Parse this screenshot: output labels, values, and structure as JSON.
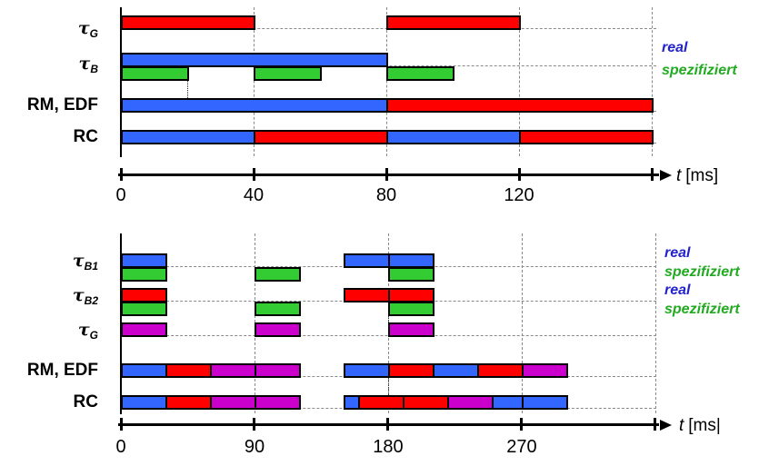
{
  "colors": {
    "blue": "#3366FF",
    "red": "#FF0000",
    "green": "#33CC33",
    "magenta": "#CC00CC",
    "legend_blue": "#2222CC",
    "legend_green": "#22AA22"
  },
  "chart_data": [
    {
      "type": "gantt",
      "name": "top-schedule",
      "time_unit": "ms",
      "axis_label_t": "t",
      "axis_label_unit": "[ms]",
      "t_max": 160,
      "ticks": [
        {
          "t": 0,
          "label": "0"
        },
        {
          "t": 40,
          "label": "40"
        },
        {
          "t": 80,
          "label": "80"
        },
        {
          "t": 120,
          "label": "120"
        },
        {
          "t": 160,
          "label": ""
        }
      ],
      "legend": [
        {
          "text": "real",
          "color": "legend_blue"
        },
        {
          "text": "spezifiziert",
          "color": "legend_green"
        }
      ],
      "rows": [
        {
          "id": "tauG",
          "label_type": "tau",
          "sub": "G",
          "bars": [
            {
              "start": 0,
              "end": 40,
              "color": "red"
            },
            {
              "start": 80,
              "end": 120,
              "color": "red"
            }
          ],
          "spec": []
        },
        {
          "id": "tauB",
          "label_type": "tau",
          "sub": "B",
          "bars": [
            {
              "start": 0,
              "end": 80,
              "color": "blue"
            }
          ],
          "spec": [
            {
              "start": 0,
              "end": 20
            },
            {
              "start": 40,
              "end": 60
            },
            {
              "start": 80,
              "end": 100
            }
          ]
        },
        {
          "id": "rmedf",
          "label_type": "text",
          "text": "RM, EDF",
          "bars": [
            {
              "start": 0,
              "end": 80,
              "color": "blue"
            },
            {
              "start": 80,
              "end": 160,
              "color": "red"
            }
          ],
          "spec": []
        },
        {
          "id": "rc",
          "label_type": "text",
          "text": "RC",
          "bars": [
            {
              "start": 0,
              "end": 40,
              "color": "blue"
            },
            {
              "start": 40,
              "end": 80,
              "color": "red"
            },
            {
              "start": 80,
              "end": 120,
              "color": "blue"
            },
            {
              "start": 120,
              "end": 160,
              "color": "red"
            }
          ],
          "spec": []
        }
      ],
      "connectors": [
        {
          "t": 20,
          "from_row": "tauB",
          "to_row": "rmedf"
        }
      ]
    },
    {
      "type": "gantt",
      "name": "bottom-schedule",
      "time_unit": "ms",
      "axis_label_t": "t",
      "axis_label_unit": "[ms|",
      "t_max": 360,
      "ticks": [
        {
          "t": 0,
          "label": "0"
        },
        {
          "t": 90,
          "label": "90"
        },
        {
          "t": 180,
          "label": "180"
        },
        {
          "t": 270,
          "label": "270"
        },
        {
          "t": 360,
          "label": ""
        }
      ],
      "legend": [
        {
          "text": "real",
          "color": "legend_blue"
        },
        {
          "text": "spezifiziert",
          "color": "legend_green"
        },
        {
          "text": "real",
          "color": "legend_blue"
        },
        {
          "text": "spezifiziert",
          "color": "legend_green"
        }
      ],
      "rows": [
        {
          "id": "tauB1",
          "label_type": "tau",
          "sub": "B1",
          "bars": [
            {
              "start": 0,
              "end": 30,
              "color": "blue"
            },
            {
              "start": 150,
              "end": 180,
              "color": "blue"
            },
            {
              "start": 180,
              "end": 210,
              "color": "blue"
            }
          ],
          "spec": [
            {
              "start": 0,
              "end": 30
            },
            {
              "start": 90,
              "end": 120
            },
            {
              "start": 180,
              "end": 210
            }
          ]
        },
        {
          "id": "tauB2",
          "label_type": "tau",
          "sub": "B2",
          "bars": [
            {
              "start": 0,
              "end": 30,
              "color": "red"
            },
            {
              "start": 150,
              "end": 180,
              "color": "red"
            },
            {
              "start": 180,
              "end": 210,
              "color": "red"
            }
          ],
          "spec": [
            {
              "start": 0,
              "end": 30
            },
            {
              "start": 90,
              "end": 120
            },
            {
              "start": 180,
              "end": 210
            }
          ]
        },
        {
          "id": "tauG",
          "label_type": "tau",
          "sub": "G",
          "bars": [
            {
              "start": 0,
              "end": 30,
              "color": "magenta"
            },
            {
              "start": 90,
              "end": 120,
              "color": "magenta"
            },
            {
              "start": 180,
              "end": 210,
              "color": "magenta"
            }
          ],
          "spec": []
        },
        {
          "id": "rmedf",
          "label_type": "text",
          "text": "RM, EDF",
          "bars": [
            {
              "start": 0,
              "end": 30,
              "color": "blue"
            },
            {
              "start": 30,
              "end": 60,
              "color": "red"
            },
            {
              "start": 60,
              "end": 90,
              "color": "magenta"
            },
            {
              "start": 90,
              "end": 120,
              "color": "magenta"
            },
            {
              "start": 150,
              "end": 180,
              "color": "blue"
            },
            {
              "start": 180,
              "end": 210,
              "color": "red"
            },
            {
              "start": 210,
              "end": 240,
              "color": "blue"
            },
            {
              "start": 240,
              "end": 270,
              "color": "red"
            },
            {
              "start": 270,
              "end": 300,
              "color": "magenta"
            }
          ],
          "spec": []
        },
        {
          "id": "rc",
          "label_type": "text",
          "text": "RC",
          "bars": [
            {
              "start": 0,
              "end": 30,
              "color": "blue"
            },
            {
              "start": 30,
              "end": 60,
              "color": "red"
            },
            {
              "start": 60,
              "end": 90,
              "color": "magenta"
            },
            {
              "start": 90,
              "end": 120,
              "color": "magenta"
            },
            {
              "start": 150,
              "end": 160,
              "color": "blue"
            },
            {
              "start": 160,
              "end": 190,
              "color": "red"
            },
            {
              "start": 190,
              "end": 220,
              "color": "red"
            },
            {
              "start": 220,
              "end": 250,
              "color": "magenta"
            },
            {
              "start": 250,
              "end": 270,
              "color": "blue"
            },
            {
              "start": 270,
              "end": 300,
              "color": "blue"
            }
          ],
          "spec": []
        }
      ],
      "connectors": [
        {
          "t": 180,
          "from_row": "tauB2",
          "to_row": "tauG"
        },
        {
          "t": 180,
          "from_row": "rmedf",
          "to_row": "rc"
        }
      ]
    }
  ]
}
